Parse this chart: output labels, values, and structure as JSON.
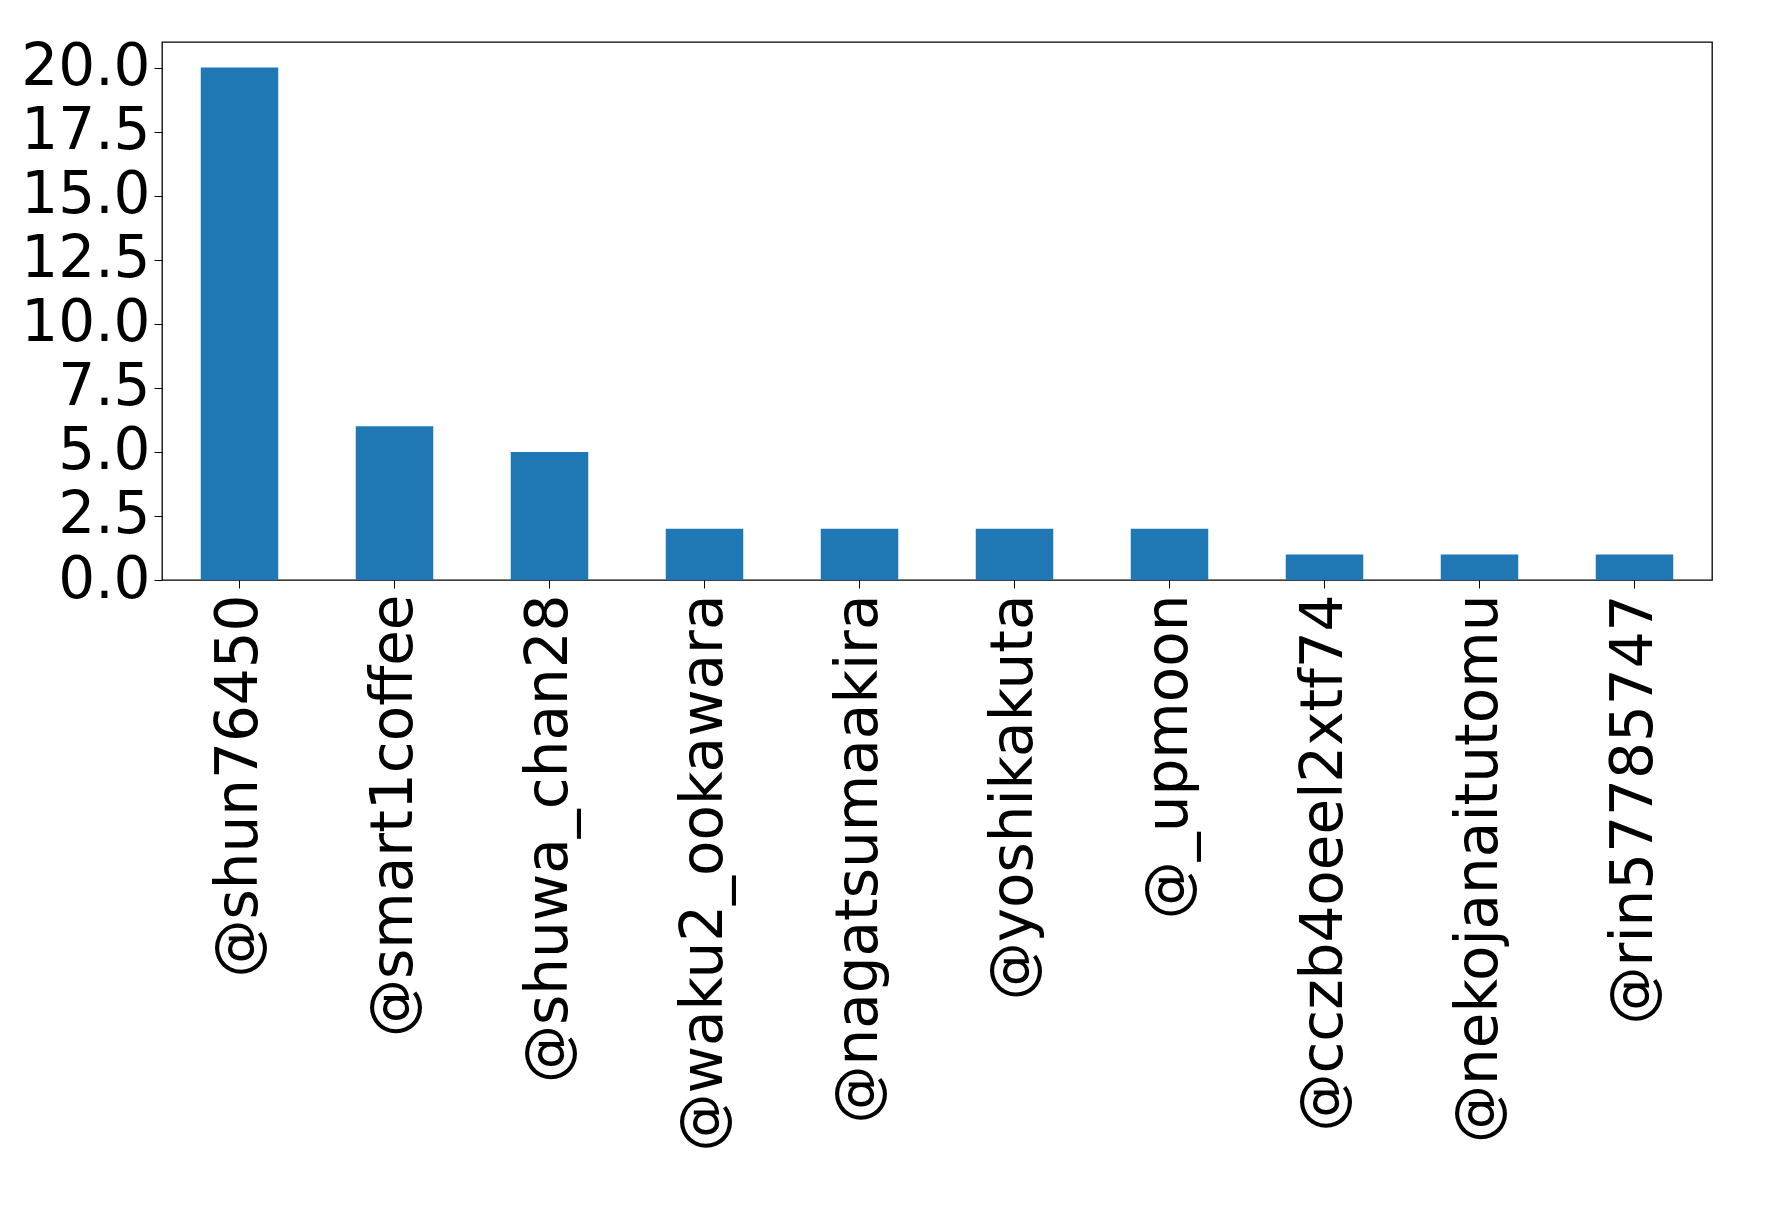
{
  "chart_data": {
    "type": "bar",
    "categories": [
      "@shun76450",
      "@smart1coffee",
      "@shuwa_chan28",
      "@waku2_ookawara",
      "@nagatsumaakira",
      "@yoshikakuta",
      "@_upmoon",
      "@cczb4oeel2xtf74",
      "@nekojanaitutomu",
      "@rin57785747"
    ],
    "values": [
      20,
      6,
      5,
      2,
      2,
      2,
      2,
      1,
      1,
      1
    ],
    "color": "#1f77b4",
    "ylim": [
      0,
      21
    ],
    "yticks": [
      {
        "value": 0,
        "label": "0.0"
      },
      {
        "value": 2.5,
        "label": "2.5"
      },
      {
        "value": 5,
        "label": "5.0"
      },
      {
        "value": 7.5,
        "label": "7.5"
      },
      {
        "value": 10,
        "label": "10.0"
      },
      {
        "value": 12.5,
        "label": "12.5"
      },
      {
        "value": 15,
        "label": "15.0"
      },
      {
        "value": 17.5,
        "label": "17.5"
      },
      {
        "value": 20,
        "label": "20.0"
      }
    ],
    "grid": false
  }
}
